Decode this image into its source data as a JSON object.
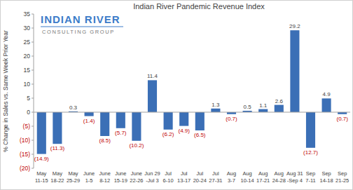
{
  "chart_data": {
    "type": "bar",
    "title": "Indian River Pandemic Revenue Index",
    "y_label": "% Change in Sales vs. Same Week Prior Year",
    "annotations": [
      "INDIAN RIVER",
      "CONSULTING GROUP"
    ],
    "categories": [
      "May\n11-15",
      "May\n18-22",
      "May\n25-29",
      "June\n1-5",
      "June\n8-12",
      "June\n15-19",
      "June\n22-26",
      "Jun 29\n-Jul 3",
      "Jul\n6-10",
      "Jul\n13-17",
      "Jul\n20-24",
      "Jul\n27-31",
      "Aug\n3-7",
      "Aug\n10-14",
      "Aug\n17-21",
      "Aug\n24-28",
      "Aug 31\n-Sep 4",
      "Sep\n7-11",
      "Sep\n14-18",
      "Sep\n21-25"
    ],
    "values": [
      -14.9,
      -11.3,
      0.3,
      -1.4,
      -8.5,
      -5.7,
      -10.2,
      11.4,
      -6.2,
      -4.9,
      -6.5,
      1.3,
      -0.7,
      0.5,
      1.1,
      2.6,
      29.2,
      -12.7,
      4.9,
      -0.7
    ],
    "value_labels": [
      "(14.9)",
      "(11.3)",
      "0.3",
      "(1.4)",
      "(8.5)",
      "(5.7)",
      "(10.2)",
      "11.4",
      "(6.2)",
      "(4.9)",
      "(6.5)",
      "1.3",
      "(0.7)",
      "0.5",
      "1.1",
      "2.6",
      "29.2",
      "(12.7)",
      "4.9",
      "(0.7)"
    ],
    "color": "#3b6fb6",
    "ylim": [
      -20,
      35
    ],
    "yticks": [
      {
        "value": -20,
        "label": "(20)"
      },
      {
        "value": -15,
        "label": "(15)"
      },
      {
        "value": -10,
        "label": "(10)"
      },
      {
        "value": -5,
        "label": "(5)"
      },
      0,
      5,
      10,
      15,
      20,
      25,
      30,
      35
    ],
    "grid": false,
    "data_labels": true
  }
}
